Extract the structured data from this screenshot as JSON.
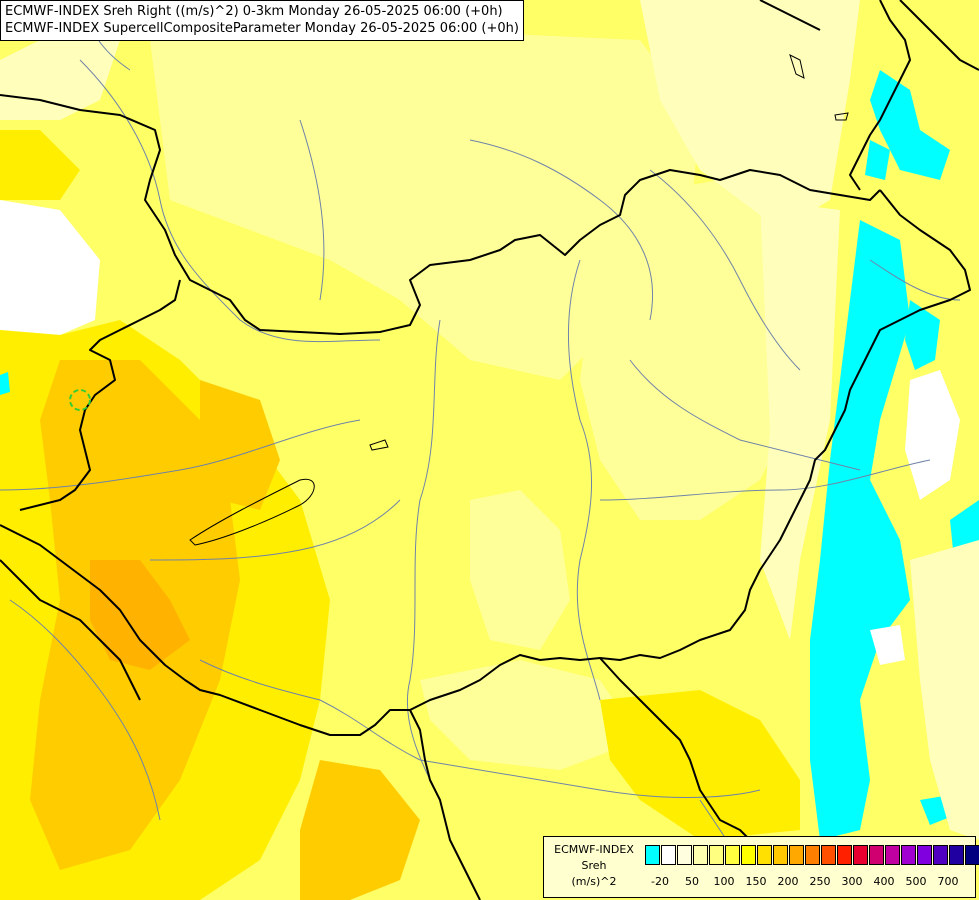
{
  "header": {
    "line1": "ECMWF-INDEX Sreh Right ((m/s)^2) 0-3km Monday 26-05-2025 06:00 (+0h)",
    "line2": "ECMWF-INDEX SupercellCompositeParameter Monday 26-05-2025 06:00 (+0h)"
  },
  "legend": {
    "source": "ECMWF-INDEX",
    "param": "Sreh",
    "unit": "(m/s)^2",
    "colors": [
      "#00ffff",
      "#ffffff",
      "#ffffe0",
      "#ffffb0",
      "#ffff80",
      "#ffff40",
      "#ffff00",
      "#ffe000",
      "#ffc800",
      "#ffa800",
      "#ff8000",
      "#ff5000",
      "#ff2000",
      "#e80030",
      "#d00070",
      "#c000a0",
      "#a000d0",
      "#8000e0",
      "#5000c0",
      "#2000a0",
      "#000080"
    ],
    "ticks": [
      "-20",
      "50",
      "100",
      "150",
      "200",
      "250",
      "300",
      "400",
      "500",
      "700"
    ]
  },
  "map": {
    "colors": {
      "base": "#ffff66",
      "light": "#ffff99",
      "pale": "#ffffbb",
      "yellow": "#ffee00",
      "orange": "#ffcc00",
      "deep_orange": "#ffb300",
      "cyan": "#00ffff",
      "white": "#ffffff",
      "border": "#000000",
      "river": "#6f83a8"
    }
  }
}
